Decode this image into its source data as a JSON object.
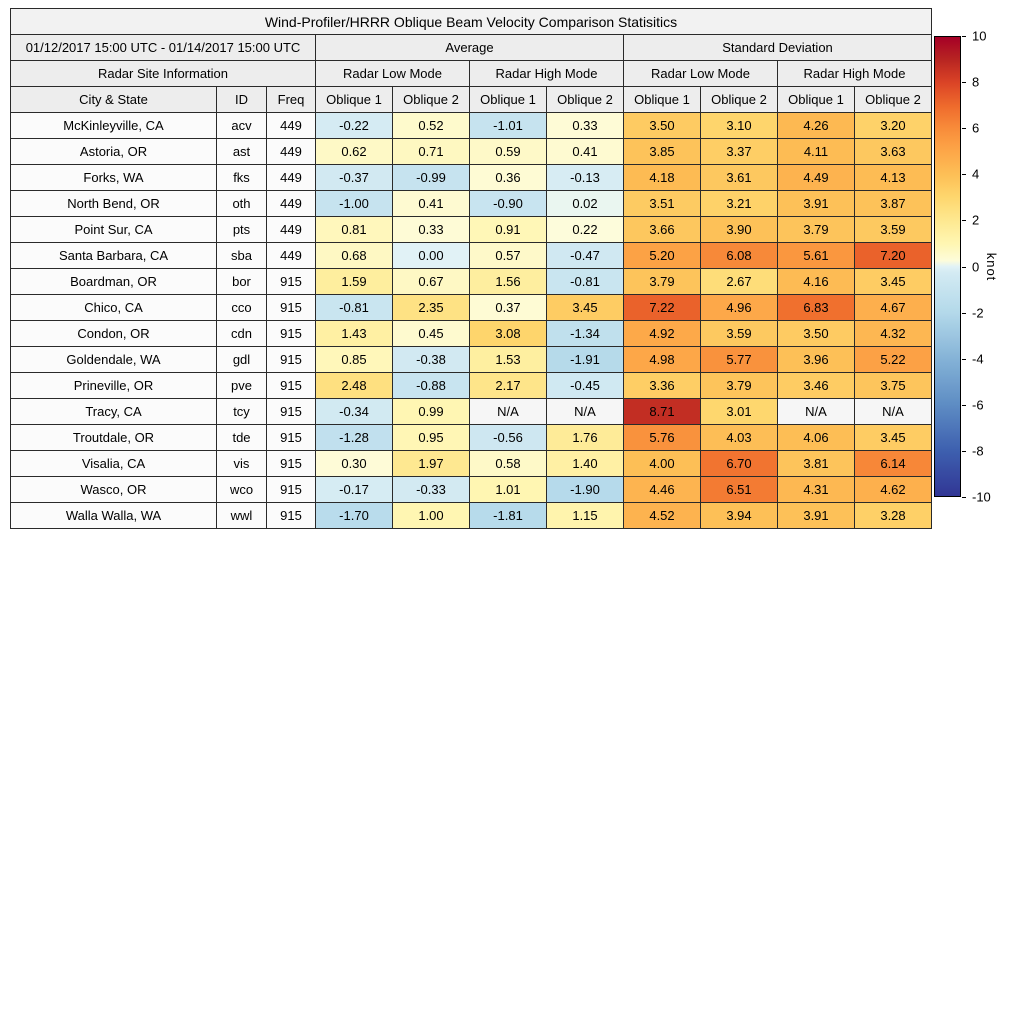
{
  "title": "Wind-Profiler/HRRR Oblique Beam Velocity Comparison Statisitics",
  "period_label": "01/12/2017 15:00 UTC - 01/14/2017 15:00 UTC",
  "table": {
    "site_info_header": "Radar Site Information",
    "group_headers": [
      "Average",
      "Standard Deviation"
    ],
    "mode_headers": [
      "Radar Low Mode",
      "Radar High Mode",
      "Radar Low Mode",
      "Radar High Mode"
    ],
    "column_headers": [
      "City & State",
      "ID",
      "Freq",
      "Oblique 1",
      "Oblique 2",
      "Oblique 1",
      "Oblique 2",
      "Oblique 1",
      "Oblique 2",
      "Oblique 1",
      "Oblique 2"
    ]
  },
  "colorbar": {
    "label": "knot",
    "min": -10,
    "max": 10,
    "ticks": [
      "10",
      "8",
      "6",
      "4",
      "2",
      "0",
      "-2",
      "-4",
      "-6",
      "-8",
      "-10"
    ]
  },
  "chart_data": {
    "type": "heatmap",
    "title": "Wind-Profiler/HRRR Oblique Beam Velocity Comparison Statisitics",
    "units": "knot",
    "value_range": [
      -10,
      10
    ],
    "colormap": "diverging blue (negative) to white (zero) to yellow-orange-red (positive)",
    "legend_position": "right-colorbar",
    "columns": [
      "Average Radar Low Mode Oblique 1",
      "Average Radar Low Mode Oblique 2",
      "Average Radar High Mode Oblique 1",
      "Average Radar High Mode Oblique 2",
      "Standard Deviation Radar Low Mode Oblique 1",
      "Standard Deviation Radar Low Mode Oblique 2",
      "Standard Deviation Radar High Mode Oblique 1",
      "Standard Deviation Radar High Mode Oblique 2"
    ],
    "rows": [
      {
        "city": "McKinleyville, CA",
        "id": "acv",
        "freq": "449",
        "values": [
          "-0.22",
          "0.52",
          "-1.01",
          "0.33",
          "3.50",
          "3.10",
          "4.26",
          "3.20"
        ]
      },
      {
        "city": "Astoria, OR",
        "id": "ast",
        "freq": "449",
        "values": [
          "0.62",
          "0.71",
          "0.59",
          "0.41",
          "3.85",
          "3.37",
          "4.11",
          "3.63"
        ]
      },
      {
        "city": "Forks, WA",
        "id": "fks",
        "freq": "449",
        "values": [
          "-0.37",
          "-0.99",
          "0.36",
          "-0.13",
          "4.18",
          "3.61",
          "4.49",
          "4.13"
        ]
      },
      {
        "city": "North Bend, OR",
        "id": "oth",
        "freq": "449",
        "values": [
          "-1.00",
          "0.41",
          "-0.90",
          "0.02",
          "3.51",
          "3.21",
          "3.91",
          "3.87"
        ]
      },
      {
        "city": "Point Sur, CA",
        "id": "pts",
        "freq": "449",
        "values": [
          "0.81",
          "0.33",
          "0.91",
          "0.22",
          "3.66",
          "3.90",
          "3.79",
          "3.59"
        ]
      },
      {
        "city": "Santa Barbara, CA",
        "id": "sba",
        "freq": "449",
        "values": [
          "0.68",
          "0.00",
          "0.57",
          "-0.47",
          "5.20",
          "6.08",
          "5.61",
          "7.20"
        ]
      },
      {
        "city": "Boardman, OR",
        "id": "bor",
        "freq": "915",
        "values": [
          "1.59",
          "0.67",
          "1.56",
          "-0.81",
          "3.79",
          "2.67",
          "4.16",
          "3.45"
        ]
      },
      {
        "city": "Chico, CA",
        "id": "cco",
        "freq": "915",
        "values": [
          "-0.81",
          "2.35",
          "0.37",
          "3.45",
          "7.22",
          "4.96",
          "6.83",
          "4.67"
        ]
      },
      {
        "city": "Condon, OR",
        "id": "cdn",
        "freq": "915",
        "values": [
          "1.43",
          "0.45",
          "3.08",
          "-1.34",
          "4.92",
          "3.59",
          "3.50",
          "4.32"
        ]
      },
      {
        "city": "Goldendale, WA",
        "id": "gdl",
        "freq": "915",
        "values": [
          "0.85",
          "-0.38",
          "1.53",
          "-1.91",
          "4.98",
          "5.77",
          "3.96",
          "5.22"
        ]
      },
      {
        "city": "Prineville, OR",
        "id": "pve",
        "freq": "915",
        "values": [
          "2.48",
          "-0.88",
          "2.17",
          "-0.45",
          "3.36",
          "3.79",
          "3.46",
          "3.75"
        ]
      },
      {
        "city": "Tracy, CA",
        "id": "tcy",
        "freq": "915",
        "values": [
          "-0.34",
          "0.99",
          "N/A",
          "N/A",
          "8.71",
          "3.01",
          "N/A",
          "N/A"
        ]
      },
      {
        "city": "Troutdale, OR",
        "id": "tde",
        "freq": "915",
        "values": [
          "-1.28",
          "0.95",
          "-0.56",
          "1.76",
          "5.76",
          "4.03",
          "4.06",
          "3.45"
        ]
      },
      {
        "city": "Visalia, CA",
        "id": "vis",
        "freq": "915",
        "values": [
          "0.30",
          "1.97",
          "0.58",
          "1.40",
          "4.00",
          "6.70",
          "3.81",
          "6.14"
        ]
      },
      {
        "city": "Wasco, OR",
        "id": "wco",
        "freq": "915",
        "values": [
          "-0.17",
          "-0.33",
          "1.01",
          "-1.90",
          "4.46",
          "6.51",
          "4.31",
          "4.62"
        ]
      },
      {
        "city": "Walla Walla, WA",
        "id": "wwl",
        "freq": "915",
        "values": [
          "-1.70",
          "1.00",
          "-1.81",
          "1.15",
          "4.52",
          "3.94",
          "3.91",
          "3.28"
        ]
      }
    ]
  }
}
